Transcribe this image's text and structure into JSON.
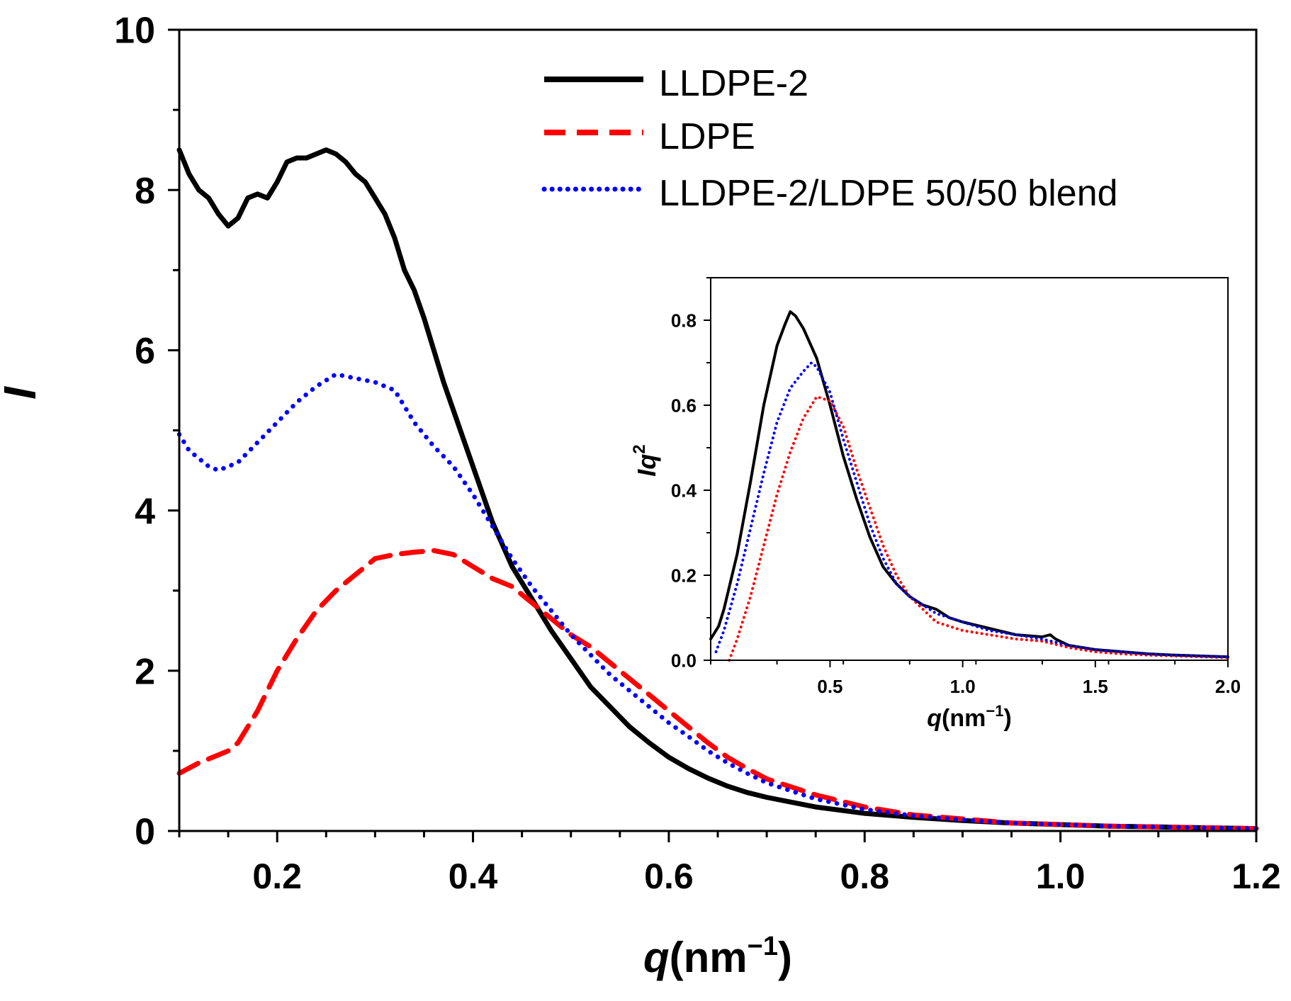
{
  "chart_data": [
    {
      "type": "line",
      "title": "",
      "xlabel": "q(nm⁻¹)",
      "xlabel_main": "q",
      "xlabel_unit": "(nm",
      "xlabel_exp": "−1",
      "xlabel_close": ")",
      "ylabel": "I",
      "xlim": [
        0.1,
        1.2
      ],
      "ylim": [
        0,
        10
      ],
      "xticks": [
        0.2,
        0.4,
        0.6,
        0.8,
        1.0,
        1.2
      ],
      "xtick_labels": [
        "0.2",
        "0.4",
        "0.6",
        "0.8",
        "1.0",
        "1.2"
      ],
      "yticks": [
        0,
        2,
        4,
        6,
        8,
        10
      ],
      "ytick_labels": [
        "0",
        "2",
        "4",
        "6",
        "8",
        "10"
      ],
      "legend_position": "top-right",
      "series": [
        {
          "name": "LLDPE-2",
          "color": "#000000",
          "style": "solid",
          "x": [
            0.1,
            0.11,
            0.12,
            0.13,
            0.14,
            0.15,
            0.16,
            0.17,
            0.18,
            0.19,
            0.2,
            0.21,
            0.22,
            0.23,
            0.24,
            0.25,
            0.26,
            0.27,
            0.28,
            0.29,
            0.3,
            0.31,
            0.32,
            0.33,
            0.34,
            0.35,
            0.36,
            0.37,
            0.38,
            0.4,
            0.42,
            0.44,
            0.46,
            0.48,
            0.5,
            0.52,
            0.54,
            0.56,
            0.58,
            0.6,
            0.62,
            0.64,
            0.66,
            0.68,
            0.7,
            0.75,
            0.8,
            0.85,
            0.9,
            0.95,
            1.0,
            1.05,
            1.1,
            1.15,
            1.2
          ],
          "values": [
            8.5,
            8.2,
            8.0,
            7.9,
            7.7,
            7.55,
            7.65,
            7.9,
            7.95,
            7.9,
            8.1,
            8.35,
            8.4,
            8.4,
            8.45,
            8.5,
            8.45,
            8.35,
            8.2,
            8.1,
            7.9,
            7.7,
            7.4,
            7.0,
            6.75,
            6.4,
            6.0,
            5.6,
            5.25,
            4.55,
            3.85,
            3.3,
            2.9,
            2.5,
            2.15,
            1.8,
            1.55,
            1.3,
            1.1,
            0.92,
            0.78,
            0.66,
            0.56,
            0.48,
            0.42,
            0.3,
            0.22,
            0.17,
            0.13,
            0.1,
            0.08,
            0.06,
            0.05,
            0.04,
            0.03
          ]
        },
        {
          "name": "LDPE",
          "color": "#ff0000",
          "style": "dashed",
          "x": [
            0.1,
            0.12,
            0.14,
            0.15,
            0.16,
            0.18,
            0.2,
            0.22,
            0.24,
            0.26,
            0.28,
            0.3,
            0.32,
            0.34,
            0.36,
            0.38,
            0.4,
            0.42,
            0.44,
            0.46,
            0.48,
            0.5,
            0.52,
            0.54,
            0.56,
            0.58,
            0.6,
            0.62,
            0.64,
            0.66,
            0.68,
            0.7,
            0.75,
            0.8,
            0.85,
            0.9,
            0.95,
            1.0,
            1.05,
            1.1,
            1.15,
            1.2
          ],
          "values": [
            0.72,
            0.85,
            0.95,
            1.0,
            1.1,
            1.5,
            2.0,
            2.4,
            2.75,
            3.0,
            3.2,
            3.4,
            3.45,
            3.48,
            3.5,
            3.45,
            3.3,
            3.15,
            3.05,
            2.85,
            2.65,
            2.45,
            2.3,
            2.1,
            1.9,
            1.7,
            1.5,
            1.3,
            1.1,
            0.92,
            0.78,
            0.65,
            0.45,
            0.3,
            0.2,
            0.15,
            0.1,
            0.08,
            0.06,
            0.05,
            0.04,
            0.03
          ]
        },
        {
          "name": "LLDPE-2/LDPE 50/50 blend",
          "color": "#0000ff",
          "style": "dotted",
          "x": [
            0.1,
            0.11,
            0.12,
            0.13,
            0.14,
            0.15,
            0.16,
            0.18,
            0.2,
            0.22,
            0.24,
            0.26,
            0.28,
            0.3,
            0.32,
            0.34,
            0.36,
            0.38,
            0.4,
            0.42,
            0.44,
            0.46,
            0.48,
            0.5,
            0.52,
            0.54,
            0.56,
            0.58,
            0.6,
            0.62,
            0.64,
            0.66,
            0.68,
            0.7,
            0.75,
            0.8,
            0.85,
            0.9,
            0.95,
            1.0,
            1.05,
            1.1,
            1.15,
            1.2
          ],
          "values": [
            4.95,
            4.75,
            4.65,
            4.55,
            4.5,
            4.55,
            4.6,
            4.85,
            5.1,
            5.35,
            5.55,
            5.7,
            5.65,
            5.6,
            5.5,
            5.1,
            4.8,
            4.55,
            4.2,
            3.8,
            3.4,
            3.05,
            2.75,
            2.45,
            2.2,
            1.95,
            1.75,
            1.55,
            1.35,
            1.18,
            1.0,
            0.85,
            0.72,
            0.6,
            0.4,
            0.27,
            0.19,
            0.14,
            0.1,
            0.08,
            0.06,
            0.05,
            0.04,
            0.03
          ]
        }
      ]
    },
    {
      "type": "line",
      "title": "",
      "xlabel": "q(nm⁻¹)",
      "xlabel_main": "q",
      "xlabel_unit": "(nm",
      "xlabel_exp": "−1",
      "xlabel_close": ")",
      "ylabel": "Iq²",
      "ylabel_main": "Iq",
      "ylabel_exp": "2",
      "xlim": [
        0.05,
        2.0
      ],
      "ylim": [
        0,
        0.9
      ],
      "xticks": [
        0.5,
        1.0,
        1.5,
        2.0
      ],
      "xtick_labels": [
        "0.5",
        "1.0",
        "1.5",
        "2.0"
      ],
      "yticks": [
        0.0,
        0.2,
        0.4,
        0.6,
        0.8
      ],
      "ytick_labels": [
        "0.0",
        "0.2",
        "0.4",
        "0.6",
        "0.8"
      ],
      "series": [
        {
          "name": "LLDPE-2",
          "color": "#000000",
          "style": "solid",
          "x": [
            0.05,
            0.08,
            0.1,
            0.15,
            0.2,
            0.25,
            0.3,
            0.33,
            0.35,
            0.37,
            0.4,
            0.45,
            0.5,
            0.55,
            0.6,
            0.65,
            0.7,
            0.75,
            0.8,
            0.85,
            0.9,
            0.95,
            1.0,
            1.1,
            1.2,
            1.3,
            1.33,
            1.35,
            1.4,
            1.5,
            1.6,
            1.7,
            1.8,
            1.9,
            2.0
          ],
          "values": [
            0.05,
            0.08,
            0.12,
            0.25,
            0.42,
            0.6,
            0.74,
            0.79,
            0.82,
            0.81,
            0.78,
            0.71,
            0.6,
            0.48,
            0.38,
            0.29,
            0.22,
            0.18,
            0.15,
            0.13,
            0.12,
            0.1,
            0.09,
            0.075,
            0.06,
            0.055,
            0.06,
            0.05,
            0.035,
            0.025,
            0.02,
            0.015,
            0.012,
            0.01,
            0.008
          ]
        },
        {
          "name": "LDPE",
          "color": "#ff0000",
          "style": "dotted",
          "x": [
            0.12,
            0.15,
            0.2,
            0.25,
            0.3,
            0.35,
            0.4,
            0.45,
            0.5,
            0.55,
            0.6,
            0.65,
            0.7,
            0.75,
            0.8,
            0.85,
            0.9,
            1.0,
            1.1,
            1.2,
            1.3,
            1.4,
            1.5,
            1.6,
            1.7,
            1.8,
            1.9,
            2.0
          ],
          "values": [
            0.0,
            0.05,
            0.15,
            0.27,
            0.39,
            0.49,
            0.57,
            0.62,
            0.61,
            0.55,
            0.45,
            0.36,
            0.27,
            0.2,
            0.15,
            0.12,
            0.09,
            0.07,
            0.06,
            0.05,
            0.045,
            0.03,
            0.02,
            0.015,
            0.012,
            0.01,
            0.008,
            0.006
          ]
        },
        {
          "name": "LLDPE-2/LDPE 50/50 blend",
          "color": "#0000ff",
          "style": "dotted",
          "x": [
            0.07,
            0.1,
            0.15,
            0.2,
            0.25,
            0.3,
            0.35,
            0.4,
            0.43,
            0.45,
            0.5,
            0.55,
            0.6,
            0.65,
            0.7,
            0.75,
            0.8,
            0.9,
            1.0,
            1.1,
            1.2,
            1.3,
            1.4,
            1.5,
            1.6,
            1.7,
            1.8,
            1.9,
            2.0
          ],
          "values": [
            0.02,
            0.07,
            0.18,
            0.31,
            0.44,
            0.56,
            0.64,
            0.68,
            0.7,
            0.69,
            0.63,
            0.52,
            0.42,
            0.32,
            0.24,
            0.18,
            0.15,
            0.11,
            0.09,
            0.07,
            0.06,
            0.05,
            0.035,
            0.025,
            0.02,
            0.015,
            0.012,
            0.01,
            0.008
          ]
        }
      ]
    }
  ]
}
